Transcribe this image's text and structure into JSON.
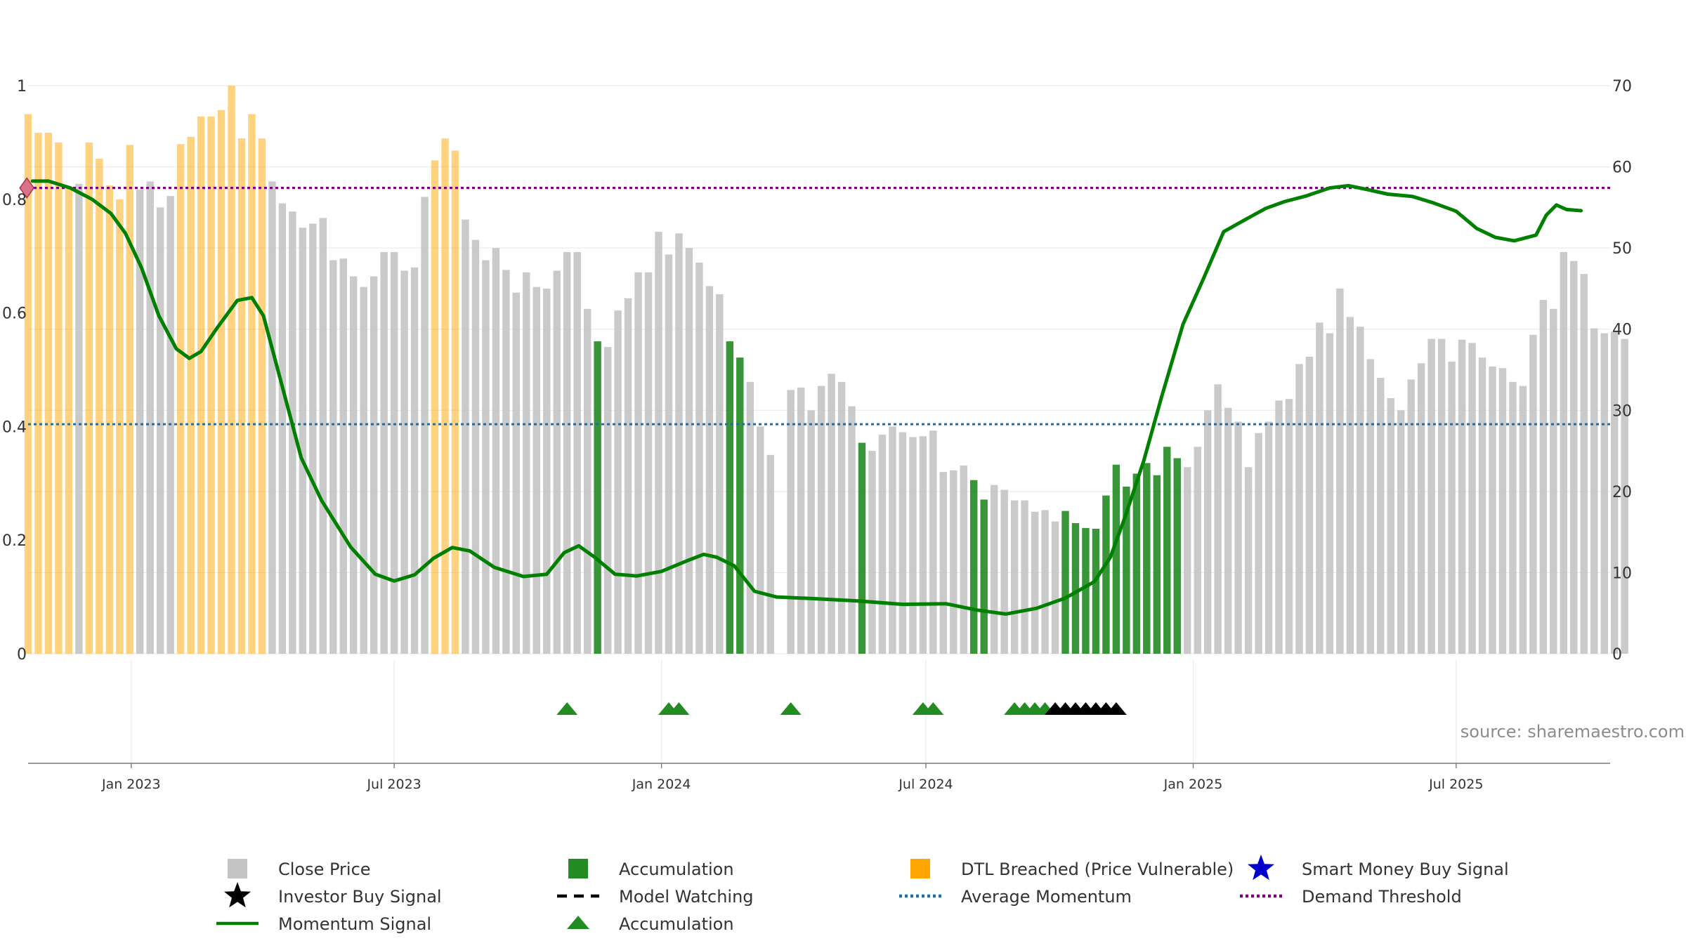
{
  "chart_data": {
    "type": "bar",
    "title": "",
    "source": "source: sharemaestro.com",
    "left_axis": {
      "ticks": [
        "0",
        "0.2",
        "0.4",
        "0.6",
        "0.8",
        "1"
      ],
      "values": [
        0,
        0.2,
        0.4,
        0.6,
        0.8,
        1
      ],
      "ylim": [
        0,
        1
      ]
    },
    "right_axis": {
      "ticks": [
        "0",
        "10",
        "20",
        "30",
        "40",
        "50",
        "60",
        "70"
      ],
      "values": [
        0,
        10,
        20,
        30,
        40,
        50,
        60,
        70
      ],
      "ylim": [
        0,
        70
      ]
    },
    "x_ticks": [
      {
        "label": "Jan 2023",
        "date": "2023-01-01"
      },
      {
        "label": "Jul 2023",
        "date": "2023-07-01"
      },
      {
        "label": "Jan 2024",
        "date": "2024-01-01"
      },
      {
        "label": "Jul 2024",
        "date": "2024-07-01"
      },
      {
        "label": "Jan 2025",
        "date": "2025-01-01"
      },
      {
        "label": "Jul 2025",
        "date": "2025-07-01"
      }
    ],
    "x_range": [
      "2022-10-22",
      "2025-10-15"
    ],
    "grid": true,
    "legend_position": "bottom",
    "colors": {
      "close_price": "#c4c4c4",
      "accumulation": "#228b22",
      "dtl_breached": "#ffa500",
      "smart_money": "#0000cc",
      "investor": "#000000",
      "momentum": "#008000",
      "average_momentum": "#1f6f9f",
      "demand_threshold": "#800080"
    },
    "bar_series": {
      "start_date": "2022-10-22",
      "interval_days": 7,
      "closes": [
        66.5,
        64.2,
        64.2,
        63.0,
        57.5,
        57.9,
        63.0,
        61.0,
        57.7,
        56.0,
        62.7,
        57.2,
        58.2,
        55.0,
        56.4,
        62.8,
        63.7,
        66.2,
        66.2,
        67.0,
        70.0,
        63.5,
        66.5,
        63.5,
        58.2,
        55.5,
        54.5,
        52.5,
        53.0,
        53.7,
        48.5,
        48.7,
        46.5,
        45.2,
        46.5,
        49.5,
        49.5,
        47.2,
        47.6,
        56.3,
        60.8,
        63.5,
        62.0,
        53.5,
        51.0,
        48.5,
        50.0,
        47.3,
        44.5,
        47.0,
        45.2,
        45.0,
        47.2,
        49.5,
        49.5,
        42.5,
        38.5,
        37.8,
        42.3,
        43.8,
        47.0,
        47.0,
        52.0,
        49.2,
        51.8,
        50.0,
        48.2,
        45.3,
        44.3,
        38.5,
        36.5,
        33.5,
        28.0,
        24.5,
        0,
        32.5,
        32.8,
        30.0,
        33.0,
        34.5,
        33.5,
        30.5,
        26.0,
        25.0,
        27.0,
        28.0,
        27.3,
        26.7,
        26.8,
        27.5,
        22.4,
        22.6,
        23.2,
        21.4,
        19.0,
        20.8,
        20.2,
        18.9,
        18.9,
        17.5,
        17.7,
        16.3,
        17.6,
        16.1,
        15.5,
        15.4,
        19.5,
        23.3,
        20.6,
        22.2,
        23.5,
        22.0,
        25.5,
        24.1,
        23.0,
        25.5,
        30.0,
        33.2,
        30.3,
        28.6,
        23.0,
        27.2,
        28.6,
        31.2,
        31.4,
        35.7,
        36.6,
        40.8,
        39.5,
        45.0,
        41.5,
        40.3,
        36.3,
        34.0,
        31.5,
        30.0,
        33.8,
        35.8,
        38.8,
        38.8,
        36.0,
        38.7,
        38.3,
        36.5,
        35.4,
        35.2,
        33.5,
        33.0,
        39.3,
        43.6,
        42.5,
        49.5,
        48.4,
        46.8,
        40.1,
        39.5,
        39.7,
        38.8
      ],
      "highlights": {
        "dtl_breached": [
          [
            0,
            4
          ],
          [
            6,
            10
          ],
          [
            15,
            23
          ],
          [
            40,
            42
          ]
        ],
        "accumulation": [
          [
            56,
            56
          ],
          [
            69,
            70
          ],
          [
            82,
            82
          ],
          [
            93,
            94
          ],
          [
            102,
            113
          ]
        ]
      }
    },
    "markers": {
      "accumulation": [
        "2023-10-28",
        "2024-01-06",
        "2024-01-13",
        "2024-03-30",
        "2024-06-29",
        "2024-07-06",
        "2024-08-31",
        "2024-09-07",
        "2024-09-14",
        "2024-09-21"
      ],
      "investor_buy_signal": [
        "2024-09-28",
        "2024-10-05",
        "2024-10-12",
        "2024-10-19",
        "2024-10-26",
        "2024-11-02",
        "2024-11-09"
      ]
    },
    "momentum": [
      [
        "2022-10-25",
        0.832
      ],
      [
        "2022-11-05",
        0.832
      ],
      [
        "2022-11-20",
        0.82
      ],
      [
        "2022-12-05",
        0.8
      ],
      [
        "2022-12-18",
        0.775
      ],
      [
        "2022-12-28",
        0.74
      ],
      [
        "2023-01-08",
        0.68
      ],
      [
        "2023-01-20",
        0.595
      ],
      [
        "2023-02-01",
        0.537
      ],
      [
        "2023-02-10",
        0.52
      ],
      [
        "2023-02-18",
        0.532
      ],
      [
        "2023-03-01",
        0.573
      ],
      [
        "2023-03-15",
        0.622
      ],
      [
        "2023-03-25",
        0.627
      ],
      [
        "2023-04-02",
        0.595
      ],
      [
        "2023-04-15",
        0.47
      ],
      [
        "2023-04-28",
        0.345
      ],
      [
        "2023-05-12",
        0.27
      ],
      [
        "2023-06-01",
        0.188
      ],
      [
        "2023-06-18",
        0.14
      ],
      [
        "2023-07-01",
        0.128
      ],
      [
        "2023-07-15",
        0.139
      ],
      [
        "2023-07-28",
        0.168
      ],
      [
        "2023-08-10",
        0.187
      ],
      [
        "2023-08-22",
        0.181
      ],
      [
        "2023-09-08",
        0.152
      ],
      [
        "2023-09-28",
        0.136
      ],
      [
        "2023-10-14",
        0.14
      ],
      [
        "2023-10-26",
        0.178
      ],
      [
        "2023-11-05",
        0.19
      ],
      [
        "2023-11-16",
        0.17
      ],
      [
        "2023-11-30",
        0.14
      ],
      [
        "2023-12-15",
        0.137
      ],
      [
        "2024-01-01",
        0.145
      ],
      [
        "2024-01-18",
        0.163
      ],
      [
        "2024-01-30",
        0.175
      ],
      [
        "2024-02-08",
        0.17
      ],
      [
        "2024-02-20",
        0.155
      ],
      [
        "2024-03-05",
        0.11
      ],
      [
        "2024-03-20",
        0.1
      ],
      [
        "2024-04-15",
        0.097
      ],
      [
        "2024-05-15",
        0.093
      ],
      [
        "2024-06-15",
        0.087
      ],
      [
        "2024-07-15",
        0.088
      ],
      [
        "2024-08-05",
        0.077
      ],
      [
        "2024-08-25",
        0.07
      ],
      [
        "2024-09-15",
        0.08
      ],
      [
        "2024-10-05",
        0.098
      ],
      [
        "2024-10-25",
        0.127
      ],
      [
        "2024-11-05",
        0.17
      ],
      [
        "2024-11-15",
        0.24
      ],
      [
        "2024-11-28",
        0.34
      ],
      [
        "2024-12-10",
        0.45
      ],
      [
        "2024-12-25",
        0.58
      ],
      [
        "2025-01-08",
        0.66
      ],
      [
        "2025-01-22",
        0.743
      ],
      [
        "2025-02-05",
        0.763
      ],
      [
        "2025-02-20",
        0.784
      ],
      [
        "2025-03-05",
        0.796
      ],
      [
        "2025-03-20",
        0.806
      ],
      [
        "2025-04-05",
        0.82
      ],
      [
        "2025-04-18",
        0.824
      ],
      [
        "2025-05-01",
        0.817
      ],
      [
        "2025-05-15",
        0.809
      ],
      [
        "2025-06-01",
        0.805
      ],
      [
        "2025-06-15",
        0.794
      ],
      [
        "2025-07-01",
        0.779
      ],
      [
        "2025-07-15",
        0.749
      ],
      [
        "2025-07-28",
        0.733
      ],
      [
        "2025-08-10",
        0.727
      ],
      [
        "2025-08-25",
        0.737
      ],
      [
        "2025-09-01",
        0.772
      ],
      [
        "2025-09-08",
        0.79
      ],
      [
        "2025-09-15",
        0.782
      ],
      [
        "2025-09-25",
        0.78
      ]
    ],
    "average_momentum": 0.404,
    "demand_threshold": 0.82,
    "legend": [
      {
        "key": "close_price",
        "label": "Close Price",
        "symbol": "square"
      },
      {
        "key": "accumulation_bar",
        "label": "Accumulation",
        "symbol": "square"
      },
      {
        "key": "dtl_breached",
        "label": "DTL Breached (Price Vulnerable)",
        "symbol": "square"
      },
      {
        "key": "smart_money",
        "label": "Smart Money Buy Signal",
        "symbol": "star"
      },
      {
        "key": "investor",
        "label": "Investor Buy Signal",
        "symbol": "star"
      },
      {
        "key": "model_watching",
        "label": "Model Watching",
        "symbol": "dashed-line"
      },
      {
        "key": "average_momentum",
        "label": "Average Momentum",
        "symbol": "dotted-line"
      },
      {
        "key": "demand_threshold",
        "label": "Demand Threshold",
        "symbol": "dotted-line"
      },
      {
        "key": "momentum",
        "label": "Momentum Signal",
        "symbol": "solid-line"
      },
      {
        "key": "accumulation_marker",
        "label": "Accumulation",
        "symbol": "triangle"
      }
    ]
  }
}
